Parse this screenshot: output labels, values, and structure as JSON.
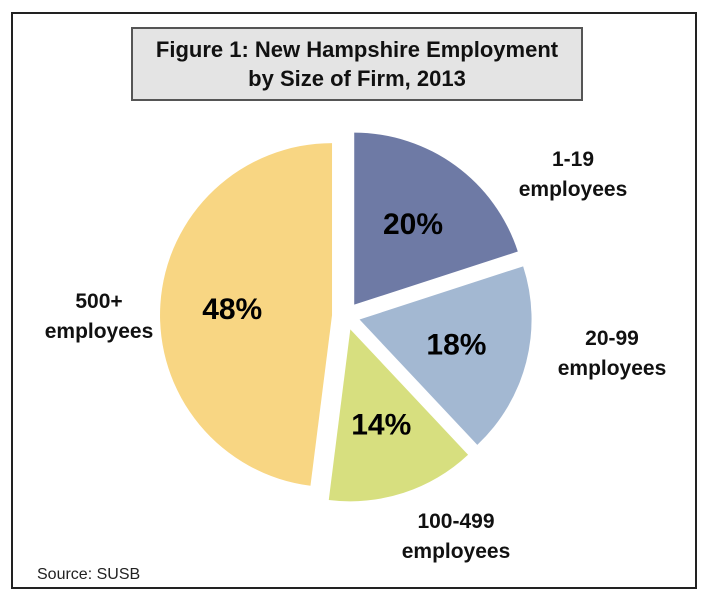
{
  "chart_data": {
    "type": "pie",
    "title_lines": [
      "Figure 1: New Hampshire Employment",
      "by Size of Firm, 2013"
    ],
    "slices": [
      {
        "name_lines": [
          "1-19",
          "employees"
        ],
        "value": 20,
        "value_label": "20%",
        "color": "#6e7aa5"
      },
      {
        "name_lines": [
          "20-99",
          "employees"
        ],
        "value": 18,
        "value_label": "18%",
        "color": "#a3b8d2"
      },
      {
        "name_lines": [
          "100-499",
          "employees"
        ],
        "value": 14,
        "value_label": "14%",
        "color": "#d7df7f"
      },
      {
        "name_lines": [
          "500+",
          "employees"
        ],
        "value": 48,
        "value_label": "48%",
        "color": "#f8d683"
      }
    ],
    "exploded": true
  },
  "source": "Source: SUSB"
}
